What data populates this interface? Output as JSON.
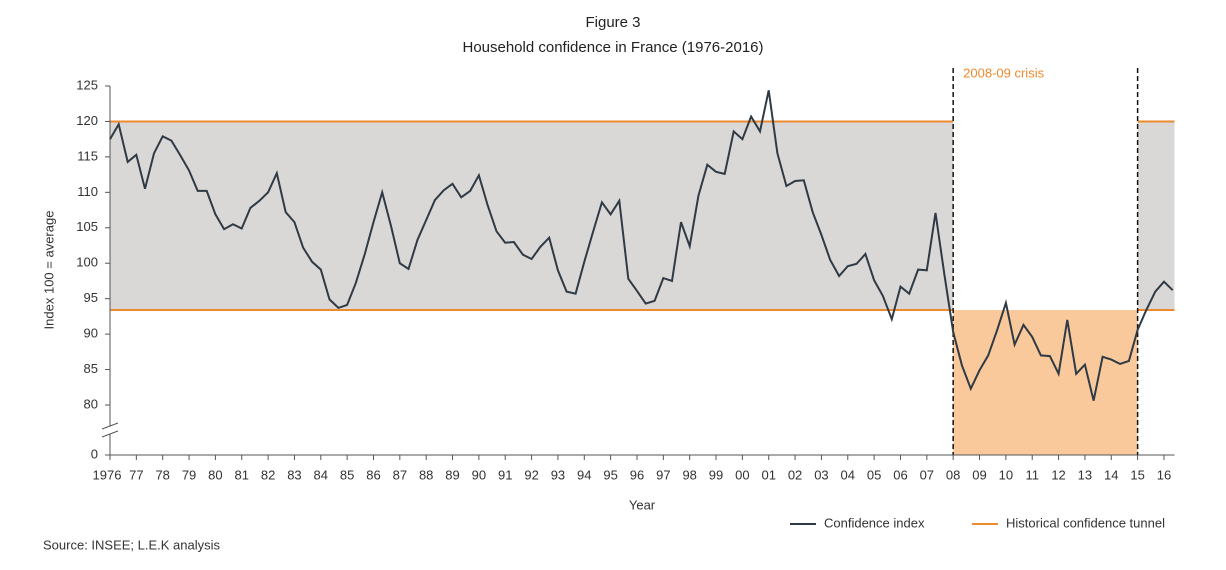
{
  "chart_data": {
    "type": "line",
    "title": "Figure 3",
    "subtitle": "Household confidence in France (1976-2016)",
    "y_label": "Index 100 = average",
    "x_label": "Year",
    "source": "Source: INSEE; L.E.K analysis",
    "axis_break": true,
    "ylim": [
      0,
      125
    ],
    "yticks": [
      0,
      80,
      85,
      90,
      95,
      100,
      105,
      110,
      115,
      120,
      125
    ],
    "xlim": [
      1976,
      2016.4
    ],
    "xticks": [
      1976,
      {
        "value": 1977,
        "label": "77"
      },
      {
        "value": 1978,
        "label": "78"
      },
      {
        "value": 1979,
        "label": "79"
      },
      {
        "value": 1980,
        "label": "80"
      },
      {
        "value": 1981,
        "label": "81"
      },
      {
        "value": 1982,
        "label": "82"
      },
      {
        "value": 1983,
        "label": "83"
      },
      {
        "value": 1984,
        "label": "84"
      },
      {
        "value": 1985,
        "label": "85"
      },
      {
        "value": 1986,
        "label": "86"
      },
      {
        "value": 1987,
        "label": "87"
      },
      {
        "value": 1988,
        "label": "88"
      },
      {
        "value": 1989,
        "label": "89"
      },
      {
        "value": 1990,
        "label": "90"
      },
      {
        "value": 1991,
        "label": "91"
      },
      {
        "value": 1992,
        "label": "92"
      },
      {
        "value": 1993,
        "label": "93"
      },
      {
        "value": 1994,
        "label": "94"
      },
      {
        "value": 1995,
        "label": "95"
      },
      {
        "value": 1996,
        "label": "96"
      },
      {
        "value": 1997,
        "label": "97"
      },
      {
        "value": 1998,
        "label": "98"
      },
      {
        "value": 1999,
        "label": "99"
      },
      {
        "value": 2000,
        "label": "00"
      },
      {
        "value": 2001,
        "label": "01"
      },
      {
        "value": 2002,
        "label": "02"
      },
      {
        "value": 2003,
        "label": "03"
      },
      {
        "value": 2004,
        "label": "04"
      },
      {
        "value": 2005,
        "label": "05"
      },
      {
        "value": 2006,
        "label": "06"
      },
      {
        "value": 2007,
        "label": "07"
      },
      {
        "value": 2008,
        "label": "08"
      },
      {
        "value": 2009,
        "label": "09"
      },
      {
        "value": 2010,
        "label": "10"
      },
      {
        "value": 2011,
        "label": "11"
      },
      {
        "value": 2012,
        "label": "12"
      },
      {
        "value": 2013,
        "label": "13"
      },
      {
        "value": 2014,
        "label": "14"
      },
      {
        "value": 2015,
        "label": "15"
      },
      {
        "value": 2016,
        "label": "16"
      }
    ],
    "x": [
      1976,
      1976.33,
      1976.67,
      1977,
      1977.33,
      1977.67,
      1978,
      1978.33,
      1978.67,
      1979,
      1979.33,
      1979.67,
      1980,
      1980.33,
      1980.67,
      1981,
      1981.33,
      1981.67,
      1982,
      1982.33,
      1982.67,
      1983,
      1983.33,
      1983.67,
      1984,
      1984.33,
      1984.67,
      1985,
      1985.33,
      1985.67,
      1986,
      1986.33,
      1986.67,
      1987,
      1987.33,
      1987.67,
      1988,
      1988.33,
      1988.67,
      1989,
      1989.33,
      1989.67,
      1990,
      1990.33,
      1990.67,
      1991,
      1991.33,
      1991.67,
      1992,
      1992.33,
      1992.67,
      1993,
      1993.33,
      1993.67,
      1994,
      1994.33,
      1994.67,
      1995,
      1995.33,
      1995.67,
      1996,
      1996.33,
      1996.67,
      1997,
      1997.33,
      1997.67,
      1998,
      1998.33,
      1998.67,
      1999,
      1999.33,
      1999.67,
      2000,
      2000.33,
      2000.67,
      2001,
      2001.33,
      2001.67,
      2002,
      2002.33,
      2002.67,
      2003,
      2003.33,
      2003.67,
      2004,
      2004.33,
      2004.67,
      2005,
      2005.33,
      2005.67,
      2006,
      2006.33,
      2006.67,
      2007,
      2007.33,
      2007.67,
      2008,
      2008.33,
      2008.67,
      2009,
      2009.33,
      2009.67,
      2010,
      2010.33,
      2010.67,
      2011,
      2011.33,
      2011.67,
      2012,
      2012.33,
      2012.67,
      2013,
      2013.33,
      2013.67,
      2014,
      2014.33,
      2014.67,
      2015,
      2015.33,
      2015.67,
      2016,
      2016.33
    ],
    "series": [
      {
        "name": "Confidence index",
        "color": "#2f3a45",
        "values": [
          117.5,
          119.6,
          114.3,
          115.3,
          110.5,
          115.5,
          117.9,
          117.3,
          115.2,
          113.1,
          110.2,
          110.2,
          106.9,
          104.8,
          105.5,
          104.9,
          107.8,
          108.8,
          110.0,
          112.7,
          107.2,
          105.8,
          102.2,
          100.2,
          99.1,
          94.9,
          93.7,
          94.1,
          97.2,
          101.3,
          105.8,
          110.0,
          105.2,
          100.0,
          99.2,
          103.3,
          106.1,
          108.9,
          110.3,
          111.2,
          109.3,
          110.2,
          112.4,
          108.2,
          104.5,
          102.9,
          103.0,
          101.2,
          100.6,
          102.3,
          103.6,
          99.0,
          96.0,
          95.7,
          100.2,
          104.4,
          108.6,
          106.9,
          108.8,
          97.8,
          96.1,
          94.3,
          94.7,
          97.9,
          97.5,
          105.8,
          102.4,
          109.5,
          113.9,
          112.9,
          112.6,
          118.6,
          117.5,
          120.7,
          118.6,
          124.4,
          115.5,
          110.9,
          111.6,
          111.7,
          107.2,
          104.0,
          100.5,
          98.2,
          99.6,
          99.9,
          101.3,
          97.6,
          95.4,
          92.1,
          96.7,
          95.7,
          99.1,
          99.0,
          107.1,
          98.3,
          90.3,
          85.6,
          82.3,
          84.9,
          87.0,
          90.6,
          94.4,
          88.5,
          91.3,
          89.6,
          87.0,
          86.9,
          84.4,
          92.0,
          84.4,
          85.7,
          80.6,
          86.8,
          86.4,
          85.8,
          86.2,
          90.6,
          93.4,
          96.0,
          97.4,
          96.2
        ]
      }
    ],
    "tunnel": {
      "name": "Historical confidence tunnel",
      "color": "#ee8a2e",
      "band_color": "#d9d8d7",
      "values": [
        93.4,
        120
      ]
    },
    "crisis": {
      "label": "2008-09 crisis",
      "start": 2008,
      "end": 2015,
      "color": "#f9c99c",
      "label_color": "#ee8a2e"
    }
  }
}
